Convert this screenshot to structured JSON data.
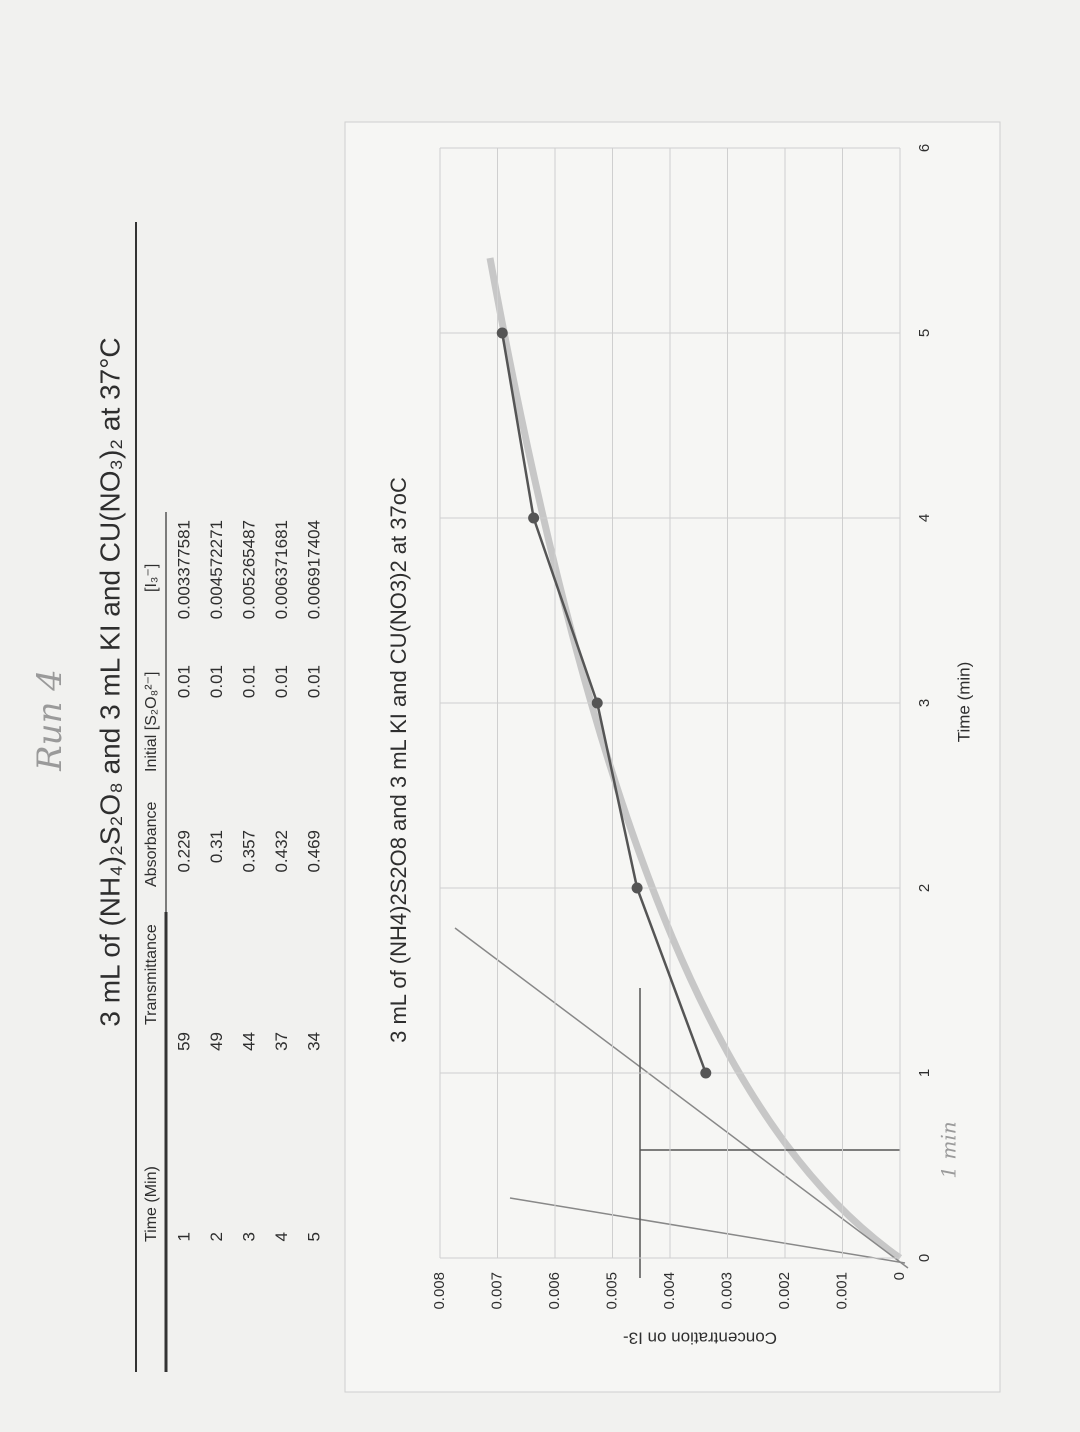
{
  "header": {
    "handwritten_note": "Run 4",
    "title": "3 mL of (NH₄)₂S₂O₈ and 3 mL KI and CU(NO₃)₂ at 37°C"
  },
  "table": {
    "headers": [
      "Time (Min)",
      "Transmittance",
      "Absorbance",
      "Initial [S₂O₈²⁻]",
      "[I₃⁻]"
    ],
    "rows": [
      [
        1,
        59,
        0.229,
        0.01,
        0.003377581
      ],
      [
        2,
        49,
        0.31,
        0.01,
        0.004572271
      ],
      [
        3,
        44,
        0.357,
        0.01,
        0.005265487
      ],
      [
        4,
        37,
        0.432,
        0.01,
        0.006371681
      ],
      [
        5,
        34,
        0.469,
        0.01,
        0.006917404
      ]
    ]
  },
  "chart_data": {
    "type": "line",
    "title": "3 mL of (NH4)2S2O8 and 3 mL KI and CU(NO3)2 at 37oC",
    "x_label": "Time (min)",
    "y_label": "Concentration on I3-",
    "x": [
      1,
      2,
      3,
      4,
      5
    ],
    "series": [
      {
        "color": "#555555",
        "values": [
          0.003377581,
          0.004572271,
          0.005265487,
          0.006371681,
          0.006917404
        ]
      }
    ],
    "xlim": [
      0,
      6
    ],
    "xticks": [
      0,
      1,
      2,
      3,
      4,
      5,
      6
    ],
    "ylim": [
      0,
      0.008
    ],
    "yticks": [
      0,
      0.001,
      0.002,
      0.003,
      0.004,
      0.005,
      0.006,
      0.007,
      0.008
    ],
    "grid": true,
    "handwritten_note": "1 min"
  }
}
